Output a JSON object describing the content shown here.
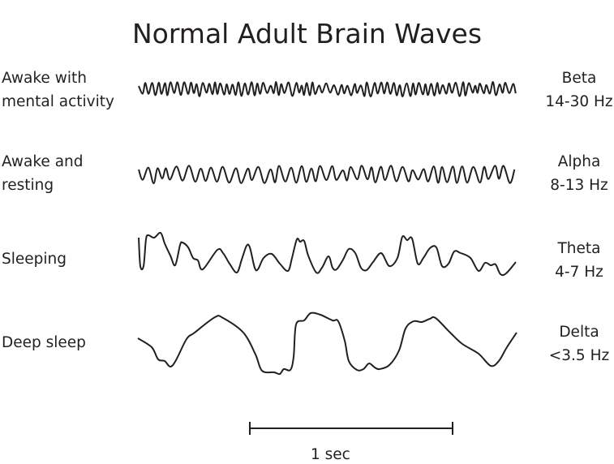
{
  "title": "Normal Adult Brain Waves",
  "rows": [
    {
      "state": "Awake with\nmental activity",
      "wave": "Beta",
      "frequency": "14-30 Hz"
    },
    {
      "state": "Awake and\nresting",
      "wave": "Alpha",
      "frequency": "8-13 Hz"
    },
    {
      "state": "Sleeping",
      "wave": "Theta",
      "frequency": "4-7 Hz"
    },
    {
      "state": "Deep sleep",
      "wave": "Delta",
      "frequency": "<3.5 Hz"
    }
  ],
  "scale_bar": {
    "label": "1 sec"
  },
  "line_color": "#231f20"
}
